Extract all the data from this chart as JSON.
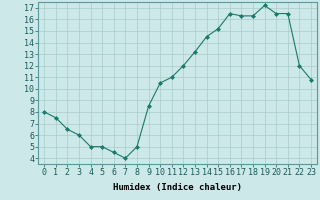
{
  "x": [
    0,
    1,
    2,
    3,
    4,
    5,
    6,
    7,
    8,
    9,
    10,
    11,
    12,
    13,
    14,
    15,
    16,
    17,
    18,
    19,
    20,
    21,
    22,
    23
  ],
  "y": [
    8,
    7.5,
    6.5,
    6,
    5,
    5,
    4.5,
    4,
    5,
    8.5,
    10.5,
    11,
    12,
    13.2,
    14.5,
    15.2,
    16.5,
    16.3,
    16.3,
    17.2,
    16.5,
    16.5,
    12,
    10.8
  ],
  "xlabel": "Humidex (Indice chaleur)",
  "xlim": [
    -0.5,
    23.5
  ],
  "ylim": [
    3.5,
    17.5
  ],
  "yticks": [
    4,
    5,
    6,
    7,
    8,
    9,
    10,
    11,
    12,
    13,
    14,
    15,
    16,
    17
  ],
  "xticks": [
    0,
    1,
    2,
    3,
    4,
    5,
    6,
    7,
    8,
    9,
    10,
    11,
    12,
    13,
    14,
    15,
    16,
    17,
    18,
    19,
    20,
    21,
    22,
    23
  ],
  "line_color": "#1a7a6a",
  "marker": "D",
  "marker_size": 2,
  "bg_color": "#cce8e8",
  "grid_color": "#aacccc",
  "label_fontsize": 6.5,
  "tick_fontsize": 6
}
